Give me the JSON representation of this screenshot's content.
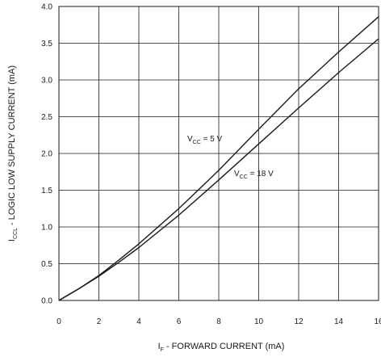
{
  "chart_data": {
    "type": "line",
    "xlabel": {
      "main": "I",
      "sub": "F",
      "rest": " - FORWARD CURRENT (mA)"
    },
    "ylabel": {
      "main": "I",
      "sub": "CCL",
      "rest": " - LOGIC LOW SUPPLY CURRENT (mA)"
    },
    "xlim": [
      0,
      16
    ],
    "ylim": [
      0,
      4.0
    ],
    "x_ticks": [
      "0",
      "2",
      "4",
      "6",
      "8",
      "10",
      "12",
      "14",
      "16"
    ],
    "y_ticks": [
      "0.0",
      "0.5",
      "1.0",
      "1.5",
      "2.0",
      "2.5",
      "3.0",
      "3.5",
      "4.0"
    ],
    "grid": true,
    "series": [
      {
        "name": {
          "main": "V",
          "sub": "CC",
          "rest": " = 5 V"
        },
        "x": [
          0,
          1,
          2,
          3,
          4,
          6,
          8,
          10,
          12,
          14,
          16
        ],
        "y": [
          0,
          0.16,
          0.34,
          0.55,
          0.77,
          1.25,
          1.77,
          2.33,
          2.88,
          3.38,
          3.86
        ]
      },
      {
        "name": {
          "main": "V",
          "sub": "CC",
          "rest": " = 18 V"
        },
        "x": [
          0,
          1,
          2,
          3,
          4,
          6,
          8,
          10,
          12,
          14,
          16
        ],
        "y": [
          0,
          0.16,
          0.33,
          0.52,
          0.72,
          1.16,
          1.64,
          2.13,
          2.62,
          3.1,
          3.56
        ]
      }
    ]
  }
}
